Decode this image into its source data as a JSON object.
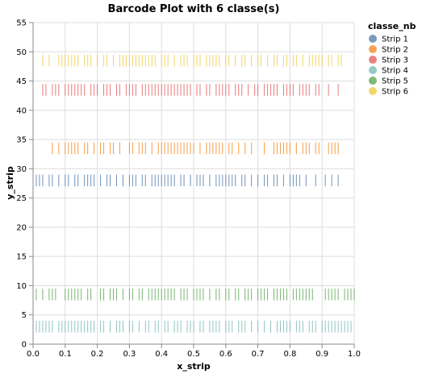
{
  "chart_data": {
    "type": "barcode",
    "title": "Barcode Plot with 6 classe(s)",
    "xlabel": "x_strip",
    "ylabel": "y_strip",
    "xlim": [
      0,
      1
    ],
    "ylim": [
      0,
      55
    ],
    "x_ticks": [
      "0.0",
      "0.1",
      "0.2",
      "0.3",
      "0.4",
      "0.5",
      "0.6",
      "0.7",
      "0.8",
      "0.9",
      "1.0"
    ],
    "y_ticks": [
      "0",
      "5",
      "10",
      "15",
      "20",
      "25",
      "30",
      "35",
      "40",
      "45",
      "50",
      "55"
    ],
    "grid": true,
    "legend": {
      "title": "classe_nb",
      "placement": "right"
    },
    "series": [
      {
        "name": "Strip 1",
        "color": "#4c78a8",
        "y_range": [
          27,
          29
        ],
        "x": [
          0.01,
          0.02,
          0.03,
          0.05,
          0.06,
          0.08,
          0.1,
          0.11,
          0.13,
          0.14,
          0.16,
          0.17,
          0.18,
          0.19,
          0.21,
          0.23,
          0.24,
          0.26,
          0.28,
          0.3,
          0.31,
          0.32,
          0.34,
          0.35,
          0.37,
          0.38,
          0.39,
          0.4,
          0.41,
          0.42,
          0.43,
          0.44,
          0.46,
          0.47,
          0.49,
          0.51,
          0.52,
          0.53,
          0.55,
          0.57,
          0.58,
          0.59,
          0.6,
          0.61,
          0.62,
          0.63,
          0.65,
          0.66,
          0.68,
          0.7,
          0.72,
          0.73,
          0.75,
          0.76,
          0.78,
          0.8,
          0.81,
          0.82,
          0.83,
          0.85,
          0.88,
          0.91,
          0.93,
          0.95
        ]
      },
      {
        "name": "Strip 2",
        "color": "#f58518",
        "y_range": [
          32.5,
          34.5
        ],
        "x": [
          0.06,
          0.08,
          0.1,
          0.11,
          0.12,
          0.13,
          0.14,
          0.16,
          0.17,
          0.19,
          0.21,
          0.22,
          0.24,
          0.25,
          0.27,
          0.3,
          0.31,
          0.33,
          0.34,
          0.35,
          0.37,
          0.39,
          0.4,
          0.41,
          0.42,
          0.43,
          0.44,
          0.45,
          0.46,
          0.47,
          0.48,
          0.49,
          0.5,
          0.52,
          0.54,
          0.55,
          0.56,
          0.57,
          0.58,
          0.59,
          0.61,
          0.62,
          0.64,
          0.66,
          0.68,
          0.72,
          0.75,
          0.76,
          0.77,
          0.78,
          0.79,
          0.8,
          0.82,
          0.84,
          0.85,
          0.86,
          0.88,
          0.89,
          0.92,
          0.93,
          0.94,
          0.95
        ]
      },
      {
        "name": "Strip 3",
        "color": "#e45756",
        "y_range": [
          42.5,
          44.5
        ],
        "x": [
          0.03,
          0.04,
          0.06,
          0.07,
          0.08,
          0.1,
          0.11,
          0.12,
          0.13,
          0.14,
          0.15,
          0.16,
          0.18,
          0.19,
          0.2,
          0.22,
          0.23,
          0.24,
          0.26,
          0.27,
          0.29,
          0.3,
          0.31,
          0.32,
          0.34,
          0.35,
          0.36,
          0.37,
          0.38,
          0.39,
          0.4,
          0.41,
          0.42,
          0.43,
          0.44,
          0.45,
          0.46,
          0.47,
          0.48,
          0.49,
          0.51,
          0.52,
          0.54,
          0.55,
          0.57,
          0.58,
          0.59,
          0.6,
          0.61,
          0.63,
          0.64,
          0.65,
          0.67,
          0.69,
          0.7,
          0.72,
          0.73,
          0.74,
          0.75,
          0.76,
          0.78,
          0.79,
          0.8,
          0.81,
          0.83,
          0.84,
          0.85,
          0.86,
          0.88,
          0.89,
          0.92,
          0.95
        ]
      },
      {
        "name": "Strip 4",
        "color": "#72b7b2",
        "y_range": [
          2,
          4
        ],
        "x": [
          0.0,
          0.01,
          0.02,
          0.03,
          0.04,
          0.05,
          0.06,
          0.08,
          0.09,
          0.1,
          0.11,
          0.12,
          0.13,
          0.14,
          0.15,
          0.16,
          0.17,
          0.18,
          0.19,
          0.21,
          0.22,
          0.24,
          0.26,
          0.27,
          0.28,
          0.3,
          0.31,
          0.33,
          0.35,
          0.36,
          0.38,
          0.39,
          0.41,
          0.42,
          0.44,
          0.45,
          0.46,
          0.48,
          0.49,
          0.5,
          0.52,
          0.53,
          0.55,
          0.56,
          0.57,
          0.58,
          0.6,
          0.61,
          0.62,
          0.64,
          0.65,
          0.66,
          0.68,
          0.7,
          0.72,
          0.74,
          0.76,
          0.77,
          0.78,
          0.79,
          0.8,
          0.82,
          0.83,
          0.84,
          0.86,
          0.87,
          0.88,
          0.9,
          0.91,
          0.92,
          0.93,
          0.94,
          0.95,
          0.96,
          0.97,
          0.98,
          0.99
        ]
      },
      {
        "name": "Strip 5",
        "color": "#54a24b",
        "y_range": [
          7.5,
          9.5
        ],
        "x": [
          0.0,
          0.01,
          0.03,
          0.05,
          0.06,
          0.07,
          0.1,
          0.11,
          0.12,
          0.13,
          0.14,
          0.15,
          0.17,
          0.18,
          0.21,
          0.22,
          0.24,
          0.25,
          0.26,
          0.28,
          0.3,
          0.31,
          0.33,
          0.34,
          0.36,
          0.37,
          0.38,
          0.39,
          0.4,
          0.41,
          0.42,
          0.43,
          0.44,
          0.46,
          0.47,
          0.48,
          0.5,
          0.51,
          0.52,
          0.53,
          0.55,
          0.57,
          0.58,
          0.6,
          0.61,
          0.63,
          0.64,
          0.66,
          0.67,
          0.68,
          0.7,
          0.71,
          0.72,
          0.73,
          0.75,
          0.76,
          0.77,
          0.78,
          0.79,
          0.81,
          0.82,
          0.83,
          0.84,
          0.85,
          0.86,
          0.87,
          0.91,
          0.92,
          0.93,
          0.94,
          0.95,
          0.97,
          0.98,
          0.99,
          1.0
        ]
      },
      {
        "name": "Strip 6",
        "color": "#eeca3b",
        "y_range": [
          47.5,
          49.5
        ],
        "x": [
          0.0,
          0.03,
          0.05,
          0.08,
          0.09,
          0.1,
          0.11,
          0.12,
          0.13,
          0.14,
          0.16,
          0.17,
          0.18,
          0.2,
          0.22,
          0.23,
          0.25,
          0.27,
          0.28,
          0.29,
          0.3,
          0.31,
          0.32,
          0.33,
          0.34,
          0.35,
          0.36,
          0.37,
          0.38,
          0.4,
          0.41,
          0.42,
          0.44,
          0.46,
          0.47,
          0.48,
          0.5,
          0.51,
          0.52,
          0.54,
          0.55,
          0.56,
          0.57,
          0.58,
          0.6,
          0.61,
          0.63,
          0.65,
          0.66,
          0.68,
          0.7,
          0.71,
          0.73,
          0.75,
          0.76,
          0.78,
          0.79,
          0.81,
          0.82,
          0.84,
          0.86,
          0.87,
          0.88,
          0.89,
          0.9,
          0.92,
          0.93,
          0.95,
          0.96
        ]
      }
    ]
  }
}
